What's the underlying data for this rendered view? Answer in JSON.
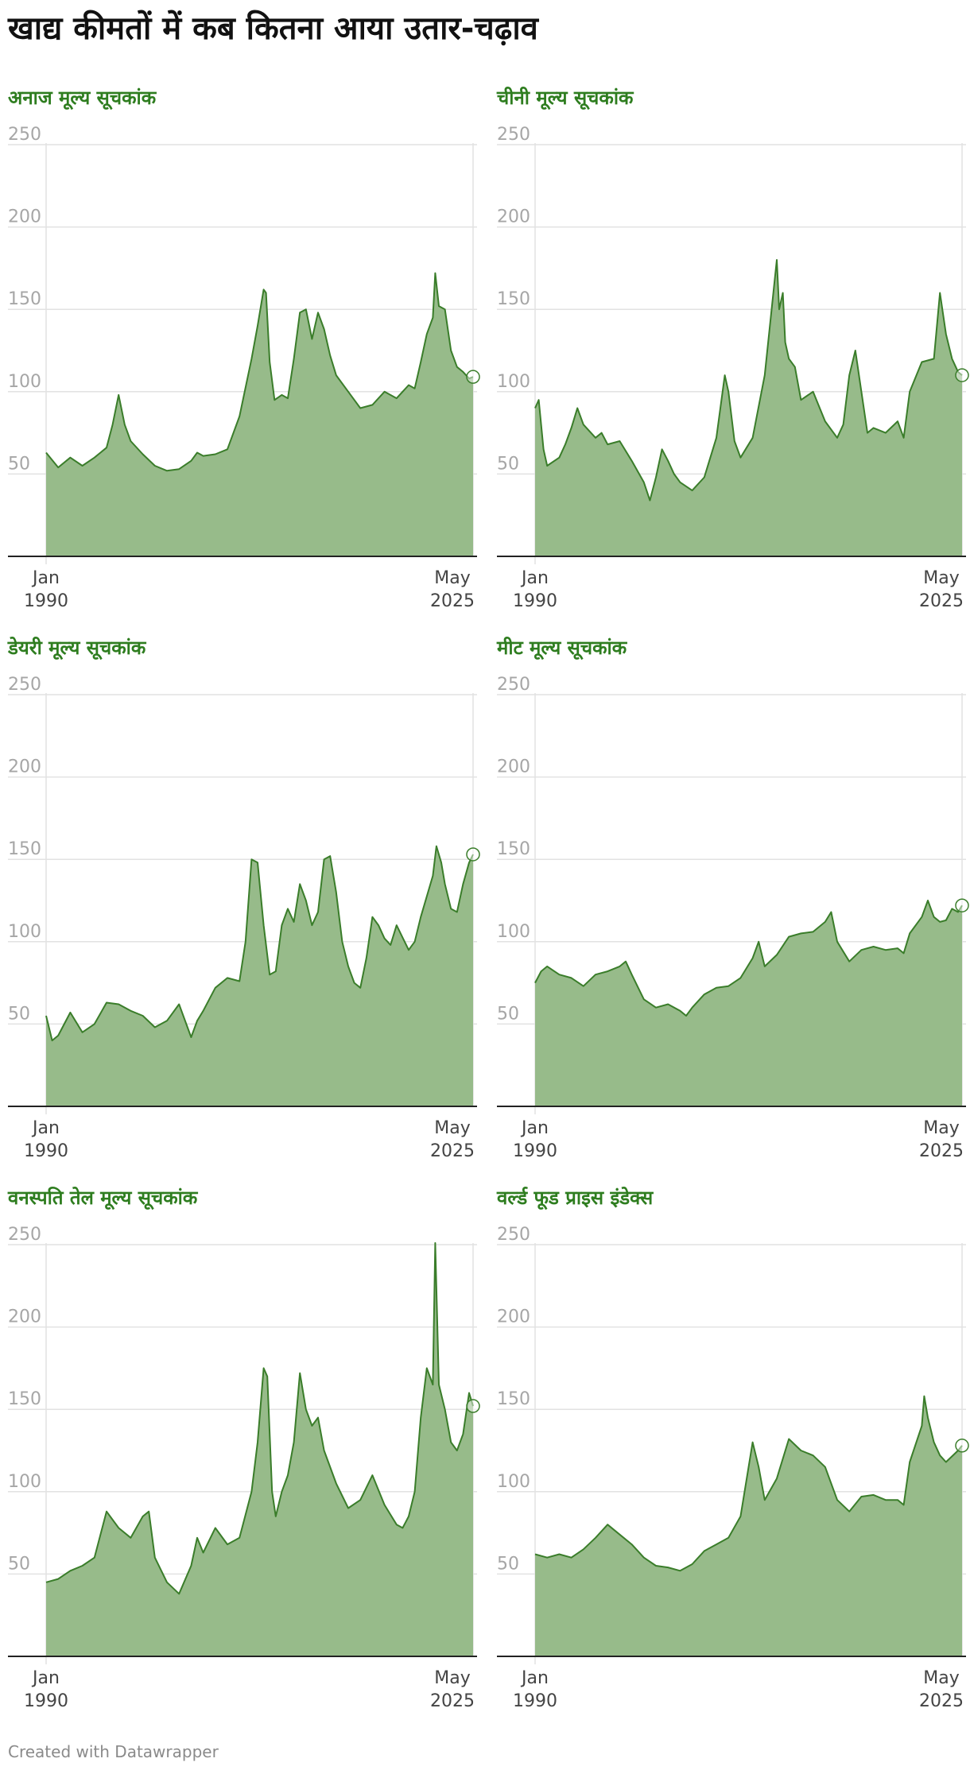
{
  "page": {
    "title": "खाद्य कीमतों में कब कितना आया उतार-चढ़ाव",
    "footer": "Created with Datawrapper"
  },
  "colors": {
    "fill": "#97bb8a",
    "line": "#3a7d2a",
    "title_accent": "#2e7d1f",
    "grid": "#e2e2e2",
    "axis_text": "#a6a6a6",
    "baseline": "#222222"
  },
  "chart_data": [
    {
      "type": "area",
      "title": "अनाज मूल्य सूचकांक",
      "ylim": [
        0,
        250
      ],
      "y_ticks": [
        "50",
        "100",
        "150",
        "200",
        "250"
      ],
      "x_tick_labels": [
        [
          "Jan",
          "1990"
        ],
        [
          "May",
          "2025"
        ]
      ],
      "grid": true,
      "x": [
        1990.0,
        1991.0,
        1992.0,
        1993.0,
        1994.0,
        1995.0,
        1995.5,
        1996.0,
        1996.5,
        1997.0,
        1998.0,
        1999.0,
        2000.0,
        2001.0,
        2002.0,
        2002.5,
        2003.0,
        2004.0,
        2005.0,
        2006.0,
        2007.0,
        2007.5,
        2008.0,
        2008.2,
        2008.5,
        2008.9,
        2009.5,
        2010.0,
        2010.5,
        2011.0,
        2011.5,
        2012.0,
        2012.5,
        2013.0,
        2013.5,
        2014.0,
        2015.0,
        2016.0,
        2017.0,
        2018.0,
        2019.0,
        2020.0,
        2020.5,
        2021.0,
        2021.5,
        2022.0,
        2022.2,
        2022.5,
        2023.0,
        2023.5,
        2024.0,
        2024.5,
        2025.0,
        2025.33
      ],
      "values": [
        63,
        54,
        60,
        55,
        60,
        66,
        80,
        98,
        80,
        70,
        62,
        55,
        52,
        53,
        58,
        63,
        61,
        62,
        65,
        85,
        120,
        140,
        162,
        160,
        118,
        95,
        98,
        96,
        120,
        148,
        150,
        132,
        148,
        138,
        122,
        110,
        100,
        90,
        92,
        100,
        96,
        104,
        102,
        118,
        135,
        145,
        172,
        152,
        150,
        125,
        115,
        112,
        108,
        109
      ]
    },
    {
      "type": "area",
      "title": "चीनी मूल्य सूचकांक",
      "ylim": [
        0,
        250
      ],
      "y_ticks": [
        "50",
        "100",
        "150",
        "200",
        "250"
      ],
      "x_tick_labels": [
        [
          "Jan",
          "1990"
        ],
        [
          "May",
          "2025"
        ]
      ],
      "grid": true,
      "x": [
        1990.0,
        1990.3,
        1990.7,
        1991.0,
        1992.0,
        1992.5,
        1993.0,
        1993.5,
        1994.0,
        1995.0,
        1995.5,
        1996.0,
        1997.0,
        1998.0,
        1999.0,
        1999.5,
        2000.0,
        2000.5,
        2001.0,
        2001.5,
        2002.0,
        2003.0,
        2004.0,
        2005.0,
        2005.7,
        2006.0,
        2006.5,
        2007.0,
        2008.0,
        2009.0,
        2009.5,
        2010.0,
        2010.2,
        2010.5,
        2010.7,
        2011.0,
        2011.5,
        2012.0,
        2013.0,
        2014.0,
        2015.0,
        2015.5,
        2016.0,
        2016.5,
        2017.0,
        2017.5,
        2018.0,
        2019.0,
        2020.0,
        2020.5,
        2021.0,
        2022.0,
        2023.0,
        2023.5,
        2024.0,
        2024.5,
        2025.0,
        2025.33
      ],
      "values": [
        90,
        95,
        65,
        55,
        60,
        68,
        78,
        90,
        80,
        72,
        75,
        68,
        70,
        58,
        45,
        34,
        48,
        65,
        58,
        50,
        45,
        40,
        48,
        72,
        110,
        100,
        70,
        60,
        72,
        110,
        145,
        180,
        150,
        160,
        130,
        120,
        115,
        95,
        100,
        82,
        72,
        80,
        110,
        125,
        100,
        75,
        78,
        75,
        82,
        72,
        100,
        118,
        120,
        160,
        135,
        120,
        112,
        110
      ]
    },
    {
      "type": "area",
      "title": "डेयरी मूल्य सूचकांक",
      "ylim": [
        0,
        250
      ],
      "y_ticks": [
        "50",
        "100",
        "150",
        "200",
        "250"
      ],
      "x_tick_labels": [
        [
          "Jan",
          "1990"
        ],
        [
          "May",
          "2025"
        ]
      ],
      "grid": true,
      "x": [
        1990.0,
        1990.5,
        1991.0,
        1992.0,
        1993.0,
        1994.0,
        1995.0,
        1996.0,
        1997.0,
        1998.0,
        1999.0,
        2000.0,
        2001.0,
        2002.0,
        2002.5,
        2003.0,
        2004.0,
        2005.0,
        2006.0,
        2006.5,
        2007.0,
        2007.5,
        2008.0,
        2008.5,
        2009.0,
        2009.5,
        2010.0,
        2010.5,
        2011.0,
        2011.5,
        2012.0,
        2012.5,
        2013.0,
        2013.5,
        2014.0,
        2014.5,
        2015.0,
        2015.5,
        2016.0,
        2016.5,
        2017.0,
        2017.5,
        2018.0,
        2018.5,
        2019.0,
        2020.0,
        2020.5,
        2021.0,
        2022.0,
        2022.3,
        2022.7,
        2023.0,
        2023.5,
        2024.0,
        2024.5,
        2025.0,
        2025.33
      ],
      "values": [
        55,
        40,
        43,
        57,
        45,
        50,
        63,
        62,
        58,
        55,
        48,
        52,
        62,
        42,
        52,
        58,
        72,
        78,
        76,
        100,
        150,
        148,
        110,
        80,
        82,
        110,
        120,
        112,
        135,
        125,
        110,
        118,
        150,
        152,
        130,
        100,
        85,
        75,
        72,
        90,
        115,
        110,
        102,
        98,
        110,
        95,
        100,
        115,
        140,
        158,
        148,
        135,
        120,
        118,
        135,
        148,
        153
      ]
    },
    {
      "type": "area",
      "title": "मीट मूल्य सूचकांक",
      "ylim": [
        0,
        250
      ],
      "y_ticks": [
        "50",
        "100",
        "150",
        "200",
        "250"
      ],
      "x_tick_labels": [
        [
          "Jan",
          "1990"
        ],
        [
          "May",
          "2025"
        ]
      ],
      "grid": true,
      "x": [
        1990.0,
        1990.5,
        1991.0,
        1992.0,
        1993.0,
        1994.0,
        1995.0,
        1996.0,
        1997.0,
        1997.5,
        1998.0,
        1999.0,
        2000.0,
        2001.0,
        2002.0,
        2002.5,
        2003.0,
        2004.0,
        2005.0,
        2006.0,
        2007.0,
        2008.0,
        2008.5,
        2009.0,
        2010.0,
        2011.0,
        2012.0,
        2013.0,
        2014.0,
        2014.5,
        2015.0,
        2016.0,
        2017.0,
        2018.0,
        2019.0,
        2020.0,
        2020.5,
        2021.0,
        2022.0,
        2022.5,
        2023.0,
        2023.5,
        2024.0,
        2024.5,
        2025.0,
        2025.33
      ],
      "values": [
        75,
        82,
        85,
        80,
        78,
        73,
        80,
        82,
        85,
        88,
        80,
        65,
        60,
        62,
        58,
        55,
        60,
        68,
        72,
        73,
        78,
        90,
        100,
        85,
        92,
        103,
        105,
        106,
        112,
        118,
        100,
        88,
        95,
        97,
        95,
        96,
        93,
        105,
        115,
        125,
        115,
        112,
        113,
        120,
        118,
        122
      ]
    },
    {
      "type": "area",
      "title": "वनस्पति तेल मूल्य सूचकांक",
      "ylim": [
        0,
        250
      ],
      "y_ticks": [
        "50",
        "100",
        "150",
        "200",
        "250"
      ],
      "x_tick_labels": [
        [
          "Jan",
          "1990"
        ],
        [
          "May",
          "2025"
        ]
      ],
      "grid": true,
      "x": [
        1990.0,
        1991.0,
        1992.0,
        1993.0,
        1994.0,
        1995.0,
        1996.0,
        1997.0,
        1998.0,
        1998.5,
        1999.0,
        2000.0,
        2001.0,
        2002.0,
        2002.5,
        2003.0,
        2004.0,
        2005.0,
        2006.0,
        2007.0,
        2007.5,
        2008.0,
        2008.3,
        2008.7,
        2009.0,
        2009.5,
        2010.0,
        2010.5,
        2011.0,
        2011.5,
        2012.0,
        2012.5,
        2013.0,
        2014.0,
        2015.0,
        2016.0,
        2017.0,
        2018.0,
        2019.0,
        2019.5,
        2020.0,
        2020.5,
        2021.0,
        2021.5,
        2022.0,
        2022.2,
        2022.5,
        2023.0,
        2023.5,
        2024.0,
        2024.5,
        2025.0,
        2025.33
      ],
      "values": [
        45,
        47,
        52,
        55,
        60,
        88,
        78,
        72,
        85,
        88,
        60,
        45,
        38,
        55,
        72,
        63,
        78,
        68,
        72,
        100,
        130,
        175,
        170,
        100,
        85,
        100,
        110,
        130,
        172,
        150,
        140,
        145,
        125,
        105,
        90,
        95,
        110,
        92,
        80,
        78,
        85,
        100,
        145,
        175,
        165,
        251,
        165,
        150,
        130,
        125,
        135,
        160,
        152
      ]
    },
    {
      "type": "area",
      "title": "वर्ल्ड फूड प्राइस इंडेक्स",
      "ylim": [
        0,
        250
      ],
      "y_ticks": [
        "50",
        "100",
        "150",
        "200",
        "250"
      ],
      "x_tick_labels": [
        [
          "Jan",
          "1990"
        ],
        [
          "May",
          "2025"
        ]
      ],
      "grid": true,
      "x": [
        1990.0,
        1991.0,
        1992.0,
        1993.0,
        1994.0,
        1995.0,
        1996.0,
        1997.0,
        1998.0,
        1999.0,
        2000.0,
        2001.0,
        2002.0,
        2003.0,
        2004.0,
        2005.0,
        2006.0,
        2007.0,
        2008.0,
        2008.5,
        2009.0,
        2010.0,
        2011.0,
        2012.0,
        2013.0,
        2014.0,
        2015.0,
        2016.0,
        2017.0,
        2018.0,
        2019.0,
        2020.0,
        2020.5,
        2021.0,
        2022.0,
        2022.2,
        2022.5,
        2023.0,
        2023.5,
        2024.0,
        2025.0,
        2025.33
      ],
      "values": [
        62,
        60,
        62,
        60,
        65,
        72,
        80,
        74,
        68,
        60,
        55,
        54,
        52,
        56,
        64,
        68,
        72,
        85,
        130,
        115,
        95,
        108,
        132,
        125,
        122,
        115,
        95,
        88,
        97,
        98,
        95,
        95,
        92,
        118,
        140,
        158,
        145,
        130,
        122,
        118,
        125,
        128
      ]
    }
  ]
}
